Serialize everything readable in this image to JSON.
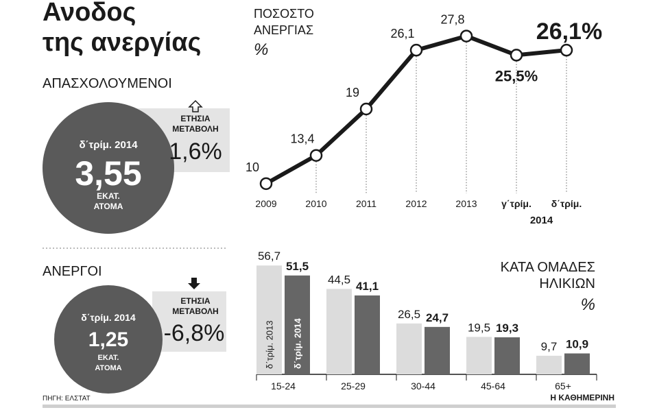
{
  "title_lines": [
    "Ανοδος",
    "της ανεργίας"
  ],
  "employed": {
    "heading": "ΑΠΑΣΧΟΛΟΥΜΕΝΟΙ",
    "period": "δ΄τρίμ. 2014",
    "value": "3,55",
    "unit_lines": [
      "ΕΚΑΤ.",
      "ΑΤΟΜΑ"
    ],
    "change_label_lines": [
      "ΕΤΗΣΙΑ",
      "ΜΕΤΑΒΟΛΗ"
    ],
    "change": "1,6%"
  },
  "unemployed": {
    "heading": "ΑΝΕΡΓΟΙ",
    "period": "δ΄τρίμ. 2014",
    "value": "1,25",
    "unit_lines": [
      "ΕΚΑΤ.",
      "ΑΤΟΜΑ"
    ],
    "change_label_lines": [
      "ΕΤΗΣΙΑ",
      "ΜΕΤΑΒΟΛΗ"
    ],
    "change": "-6,8%"
  },
  "source": "ΠΗΓΗ: ΕΛΣΤΑΤ",
  "brand": "Η ΚΑΘΗΜΕΡΙΝΗ",
  "chart_data": [
    {
      "type": "line",
      "title_lines": [
        "ΠΟΣΟΣΤΟ",
        "ΑΝΕΡΓΙΑΣ",
        "%"
      ],
      "categories": [
        "2009",
        "2010",
        "2011",
        "2012",
        "2013",
        "γ΄τρίμ.",
        "δ΄τρίμ."
      ],
      "category_group": "2014",
      "values": [
        10,
        13.4,
        19,
        26.1,
        27.8,
        25.5,
        26.1
      ],
      "value_labels": [
        "10",
        "13,4",
        "19",
        "26,1",
        "27,8",
        "25,5%",
        "26,1%"
      ],
      "color": "#1a1a1a",
      "ylim": [
        8,
        30
      ]
    },
    {
      "type": "bar",
      "title_lines": [
        "ΚΑΤΑ ΟΜΑΔΕΣ",
        "ΗΛΙΚΙΩΝ",
        "%"
      ],
      "categories": [
        "15-24",
        "25-29",
        "30-44",
        "45-64",
        "65+"
      ],
      "series": [
        {
          "name": "δ΄τρίμ. 2013",
          "color": "#dcdcdc",
          "values": [
            56.7,
            44.5,
            26.5,
            19.5,
            9.7
          ],
          "value_labels": [
            "56,7",
            "44,5",
            "26,5",
            "19,5",
            "9,7"
          ]
        },
        {
          "name": "δ΄τρίμ. 2014",
          "color": "#666666",
          "values": [
            51.5,
            41.1,
            24.7,
            19.3,
            10.9
          ],
          "value_labels": [
            "51,5",
            "41,1",
            "24,7",
            "19,3",
            "10,9"
          ]
        }
      ],
      "ylim": [
        0,
        60
      ]
    }
  ]
}
